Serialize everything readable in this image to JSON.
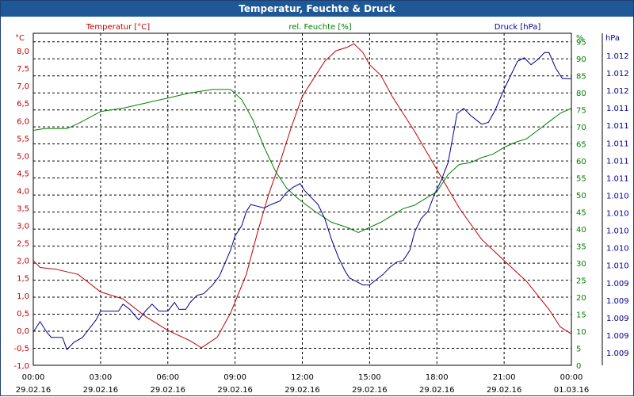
{
  "window": {
    "title": "Temperatur, Feuchte & Druck"
  },
  "colors": {
    "temperature": "#c00000",
    "humidity": "#008000",
    "pressure": "#000090",
    "titlebar": "#1e5896",
    "grid": "#000000"
  },
  "chart_data": {
    "type": "line",
    "title": "Temperatur, Feuchte & Druck",
    "grid": true,
    "x": {
      "ticks": [
        {
          "time": "00:00",
          "date": "29.02.16"
        },
        {
          "time": "03:00",
          "date": "29.02.16"
        },
        {
          "time": "06:00",
          "date": "29.02.16"
        },
        {
          "time": "09:00",
          "date": "29.02.16"
        },
        {
          "time": "12:00",
          "date": "29.02.16"
        },
        {
          "time": "15:00",
          "date": "29.02.16"
        },
        {
          "time": "18:00",
          "date": "29.02.16"
        },
        {
          "time": "21:00",
          "date": "29.02.16"
        },
        {
          "time": "00:00",
          "date": "01.03.16"
        }
      ]
    },
    "axes": {
      "left": {
        "unit": "°C",
        "ylim": [
          -1.0,
          8.5
        ],
        "ticks": [
          "8,0",
          "7,5",
          "7,0",
          "6,5",
          "6,0",
          "5,5",
          "5,0",
          "4,5",
          "4,0",
          "3,5",
          "3,0",
          "2,5",
          "2,0",
          "1,5",
          "1,0",
          "0,5",
          "0,0",
          "-0,5",
          "-1,0"
        ]
      },
      "right1": {
        "unit": "%",
        "ylim": [
          0,
          97.5
        ],
        "ticks": [
          "95",
          "90",
          "85",
          "80",
          "75",
          "70",
          "65",
          "60",
          "55",
          "50",
          "45",
          "40",
          "35",
          "30",
          "25",
          "20",
          "15",
          "10",
          "5",
          "0"
        ]
      },
      "right2": {
        "unit": "hPa",
        "ticks": [
          "1.012",
          "1.012",
          "1.012",
          "1.011",
          "1.011",
          "1.011",
          "1.011",
          "1.011",
          "1.010",
          "1.010",
          "1.010",
          "1.010",
          "1.010",
          "1.009",
          "1.009",
          "1.009",
          "1.009",
          "1.009"
        ]
      }
    },
    "series": [
      {
        "name": "Temperatur [°C]",
        "axis": "left",
        "points": [
          [
            0,
            2.0
          ],
          [
            0.3,
            1.8
          ],
          [
            1,
            1.75
          ],
          [
            2,
            1.6
          ],
          [
            3,
            1.1
          ],
          [
            4,
            0.9
          ],
          [
            5,
            0.4
          ],
          [
            6,
            0.0
          ],
          [
            7,
            -0.3
          ],
          [
            7.5,
            -0.5
          ],
          [
            8.2,
            -0.2
          ],
          [
            8.8,
            0.5
          ],
          [
            9.5,
            1.6
          ],
          [
            10,
            2.8
          ],
          [
            10.5,
            3.9
          ],
          [
            11,
            4.8
          ],
          [
            11.5,
            5.8
          ],
          [
            12,
            6.7
          ],
          [
            12.5,
            7.2
          ],
          [
            13,
            7.7
          ],
          [
            13.5,
            8.0
          ],
          [
            14,
            8.1
          ],
          [
            14.3,
            8.2
          ],
          [
            14.7,
            7.95
          ],
          [
            15,
            7.6
          ],
          [
            15.5,
            7.3
          ],
          [
            16,
            6.7
          ],
          [
            17,
            5.7
          ],
          [
            18,
            4.6
          ],
          [
            19,
            3.5
          ],
          [
            20,
            2.6
          ],
          [
            21,
            2.0
          ],
          [
            22,
            1.4
          ],
          [
            23,
            0.6
          ],
          [
            23.5,
            0.1
          ],
          [
            24,
            -0.1
          ]
        ]
      },
      {
        "name": "rel. Feuchte [%]",
        "axis": "right1",
        "points": [
          [
            0,
            69
          ],
          [
            0.5,
            69.5
          ],
          [
            1.5,
            69.5
          ],
          [
            2,
            71
          ],
          [
            3,
            74.5
          ],
          [
            4,
            75.5
          ],
          [
            5,
            77
          ],
          [
            6,
            78.5
          ],
          [
            7,
            80
          ],
          [
            8,
            81
          ],
          [
            8.8,
            81
          ],
          [
            9.3,
            78
          ],
          [
            9.8,
            72
          ],
          [
            10.3,
            64
          ],
          [
            10.8,
            57
          ],
          [
            11.3,
            52
          ],
          [
            11.8,
            49
          ],
          [
            12.5,
            45.5
          ],
          [
            13.3,
            42
          ],
          [
            14,
            40.5
          ],
          [
            14.5,
            39
          ],
          [
            15,
            40.5
          ],
          [
            15.5,
            42
          ],
          [
            16,
            44
          ],
          [
            16.5,
            46
          ],
          [
            17,
            47
          ],
          [
            17.5,
            49
          ],
          [
            18,
            51
          ],
          [
            18.5,
            56
          ],
          [
            19,
            59
          ],
          [
            19.5,
            59.5
          ],
          [
            20,
            61
          ],
          [
            20.5,
            62
          ],
          [
            21,
            64
          ],
          [
            21.5,
            65.5
          ],
          [
            22,
            66.5
          ],
          [
            22.5,
            69
          ],
          [
            23,
            71.5
          ],
          [
            23.5,
            74
          ],
          [
            24,
            75.5
          ]
        ]
      },
      {
        "name": "Druck [hPa]",
        "axis": "right2",
        "points": [
          [
            0,
            -0.05
          ],
          [
            0.3,
            0.25
          ],
          [
            0.6,
            -0.05
          ],
          [
            0.8,
            -0.2
          ],
          [
            1,
            -0.2
          ],
          [
            1.3,
            -0.2
          ],
          [
            1.5,
            -0.55
          ],
          [
            1.8,
            -0.35
          ],
          [
            2.2,
            -0.2
          ],
          [
            2.5,
            0.05
          ],
          [
            2.8,
            0.3
          ],
          [
            3,
            0.55
          ],
          [
            3.5,
            0.55
          ],
          [
            3.8,
            0.55
          ],
          [
            4,
            0.75
          ],
          [
            4.3,
            0.6
          ],
          [
            4.5,
            0.45
          ],
          [
            4.7,
            0.3
          ],
          [
            5,
            0.55
          ],
          [
            5.3,
            0.75
          ],
          [
            5.6,
            0.55
          ],
          [
            6,
            0.55
          ],
          [
            6.3,
            0.8
          ],
          [
            6.5,
            0.6
          ],
          [
            6.8,
            0.6
          ],
          [
            7,
            0.8
          ],
          [
            7.3,
            1.0
          ],
          [
            7.6,
            1.05
          ],
          [
            8,
            1.3
          ],
          [
            8.3,
            1.55
          ],
          [
            8.5,
            1.85
          ],
          [
            8.8,
            2.3
          ],
          [
            9,
            2.7
          ],
          [
            9.3,
            3.0
          ],
          [
            9.5,
            3.4
          ],
          [
            9.7,
            3.6
          ],
          [
            10,
            3.55
          ],
          [
            10.3,
            3.5
          ],
          [
            10.6,
            3.6
          ],
          [
            11,
            3.7
          ],
          [
            11.3,
            3.95
          ],
          [
            11.6,
            4.1
          ],
          [
            11.9,
            4.2
          ],
          [
            12.1,
            4.0
          ],
          [
            12.4,
            3.8
          ],
          [
            12.7,
            3.6
          ],
          [
            13,
            3.2
          ],
          [
            13.3,
            2.6
          ],
          [
            13.6,
            2.1
          ],
          [
            13.9,
            1.7
          ],
          [
            14.1,
            1.5
          ],
          [
            14.4,
            1.4
          ],
          [
            14.7,
            1.3
          ],
          [
            15,
            1.3
          ],
          [
            15.3,
            1.45
          ],
          [
            15.6,
            1.6
          ],
          [
            15.9,
            1.8
          ],
          [
            16.2,
            1.95
          ],
          [
            16.5,
            2.0
          ],
          [
            16.8,
            2.3
          ],
          [
            17,
            2.8
          ],
          [
            17.3,
            3.2
          ],
          [
            17.6,
            3.4
          ],
          [
            17.9,
            3.9
          ],
          [
            18.2,
            4.3
          ],
          [
            18.5,
            4.8
          ],
          [
            18.7,
            5.5
          ],
          [
            18.9,
            6.2
          ],
          [
            19.2,
            6.35
          ],
          [
            19.5,
            6.15
          ],
          [
            19.8,
            6.0
          ],
          [
            20,
            5.9
          ],
          [
            20.3,
            5.95
          ],
          [
            20.6,
            6.3
          ],
          [
            21,
            6.9
          ],
          [
            21.3,
            7.3
          ],
          [
            21.6,
            7.7
          ],
          [
            21.9,
            7.8
          ],
          [
            22.2,
            7.6
          ],
          [
            22.5,
            7.75
          ],
          [
            22.8,
            7.95
          ],
          [
            23,
            7.95
          ],
          [
            23.3,
            7.5
          ],
          [
            23.6,
            7.2
          ],
          [
            24,
            7.2
          ]
        ]
      }
    ]
  }
}
